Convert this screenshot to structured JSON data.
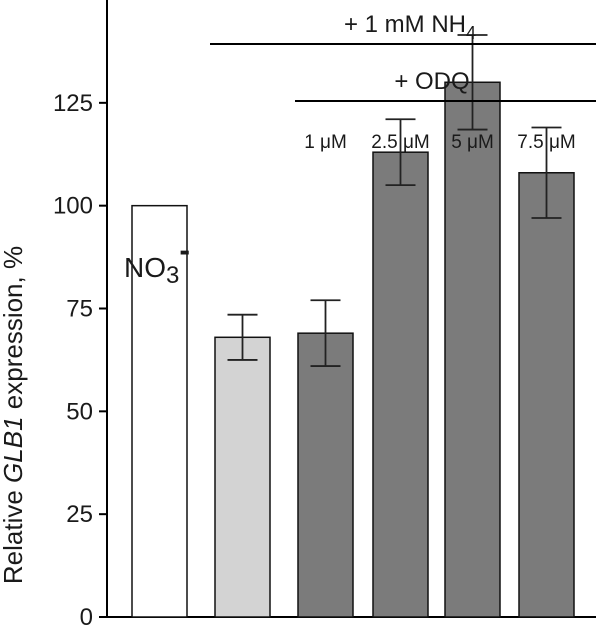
{
  "chart_data": {
    "type": "bar",
    "title": "",
    "xlabel": "",
    "ylabel_prefix": "Relative ",
    "ylabel_gene": "GLB1",
    "ylabel_suffix": " expression, %",
    "ylim": [
      0,
      150
    ],
    "y_ticks": [
      0,
      25,
      50,
      75,
      100,
      125
    ],
    "grid": false,
    "bars": [
      {
        "value": 100,
        "error": null,
        "color": "#ffffff",
        "annotation": "NO3",
        "annotation_sup": "-"
      },
      {
        "value": 68,
        "error": 5.5,
        "color": "#d3d3d3"
      },
      {
        "value": 69,
        "error": 8,
        "color": "#7b7b7b",
        "label": "1 μM"
      },
      {
        "value": 113,
        "error": 8,
        "color": "#7b7b7b",
        "label": "2.5 μM"
      },
      {
        "value": 130,
        "error": 11.5,
        "color": "#7b7b7b",
        "label": "5 μM"
      },
      {
        "value": 108,
        "error": 11,
        "color": "#7b7b7b",
        "label": "7.5 μM"
      }
    ],
    "groups": [
      {
        "label_main": "+ 1 mM NH",
        "label_sub": "4",
        "from_bar": 1,
        "to_bar": 5
      },
      {
        "label_main": "+ ODQ",
        "label_sub": "",
        "from_bar": 2,
        "to_bar": 5
      }
    ]
  }
}
